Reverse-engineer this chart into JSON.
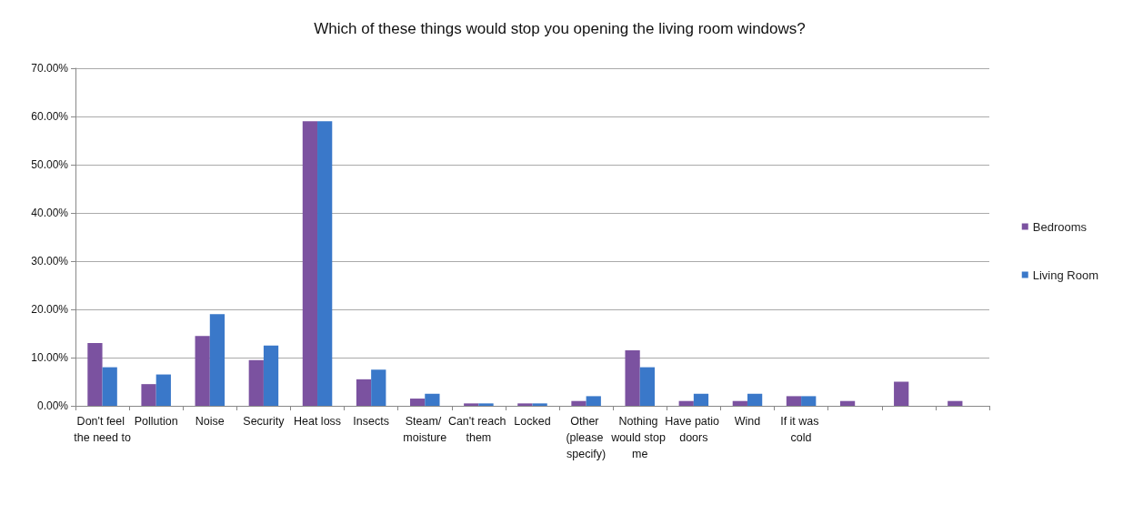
{
  "chart_data": {
    "type": "bar",
    "title": "Which of these things would stop you opening the living room windows?",
    "categories": [
      "Don't feel the need to",
      "Pollution",
      "Noise",
      "Security",
      "Heat loss",
      "Insects",
      "Steam/ moisture",
      "Can't reach them",
      "Locked",
      "Other (please specify)",
      "Nothing would stop me",
      "Have patio doors",
      "Wind",
      "If it was cold",
      null,
      null,
      null
    ],
    "series": [
      {
        "name": "Bedrooms",
        "color": "#7b52a0",
        "values": [
          13,
          4.5,
          14.5,
          9.5,
          59,
          5.5,
          1.5,
          0.5,
          0.5,
          1,
          11.5,
          1,
          1,
          2,
          1,
          5,
          1
        ]
      },
      {
        "name": "Living Room",
        "color": "#3a78c9",
        "values": [
          8,
          6.5,
          19,
          12.5,
          59,
          7.5,
          2.5,
          0.5,
          0.5,
          2,
          8,
          2.5,
          2.5,
          2,
          null,
          null,
          null
        ]
      }
    ],
    "ylim": [
      0,
      70
    ],
    "yticks": [
      {
        "value": 0,
        "label": "0.00%"
      },
      {
        "value": 10,
        "label": "10.00%"
      },
      {
        "value": 20,
        "label": "20.00%"
      },
      {
        "value": 30,
        "label": "30.00%"
      },
      {
        "value": 40,
        "label": "40.00%"
      },
      {
        "value": 50,
        "label": "50.00%"
      },
      {
        "value": 60,
        "label": "60.00%"
      },
      {
        "value": 70,
        "label": "70.00%"
      }
    ],
    "grid": "y",
    "legend": "right"
  }
}
